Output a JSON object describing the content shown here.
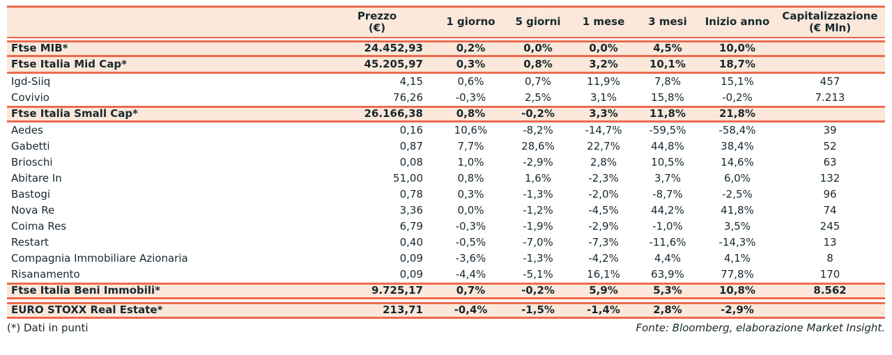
{
  "chart_data": {
    "type": "table",
    "header": {
      "name": "",
      "price": "Prezzo",
      "price_unit": "(€)",
      "day1": "1 giorno",
      "day5": "5 giorni",
      "month1": "1 mese",
      "month3": "3 mesi",
      "ytd": "Inizio anno",
      "cap": "Capitalizzazione",
      "cap_unit": "(€ Mln)"
    },
    "rows": [
      {
        "name": "Ftse MIB*",
        "price": "24.452,93",
        "day1": "0,2%",
        "day5": "0,0%",
        "month1": "0,0%",
        "month3": "4,5%",
        "ytd": "10,0%",
        "cap": "",
        "is_index": true
      },
      {
        "name": "Ftse Italia Mid Cap*",
        "price": "45.205,97",
        "day1": "0,3%",
        "day5": "0,8%",
        "month1": "3,2%",
        "month3": "10,1%",
        "ytd": "18,7%",
        "cap": "",
        "is_index": true
      },
      {
        "name": "Igd-Siiq",
        "price": "4,15",
        "day1": "0,6%",
        "day5": "0,7%",
        "month1": "11,9%",
        "month3": "7,8%",
        "ytd": "15,1%",
        "cap": "457",
        "is_index": false
      },
      {
        "name": "Covivio",
        "price": "76,26",
        "day1": "-0,3%",
        "day5": "2,5%",
        "month1": "3,1%",
        "month3": "15,8%",
        "ytd": "-0,2%",
        "cap": "7.213",
        "is_index": false
      },
      {
        "name": "Ftse Italia Small Cap*",
        "price": "26.166,38",
        "day1": "0,8%",
        "day5": "-0,2%",
        "month1": "3,3%",
        "month3": "11,8%",
        "ytd": "21,8%",
        "cap": "",
        "is_index": true
      },
      {
        "name": "Aedes",
        "price": "0,16",
        "day1": "10,6%",
        "day5": "-8,2%",
        "month1": "-14,7%",
        "month3": "-59,5%",
        "ytd": "-58,4%",
        "cap": "39",
        "is_index": false
      },
      {
        "name": "Gabetti",
        "price": "0,87",
        "day1": "7,7%",
        "day5": "28,6%",
        "month1": "22,7%",
        "month3": "44,8%",
        "ytd": "38,4%",
        "cap": "52",
        "is_index": false
      },
      {
        "name": "Brioschi",
        "price": "0,08",
        "day1": "1,0%",
        "day5": "-2,9%",
        "month1": "2,8%",
        "month3": "10,5%",
        "ytd": "14,6%",
        "cap": "63",
        "is_index": false
      },
      {
        "name": "Abitare In",
        "price": "51,00",
        "day1": "0,8%",
        "day5": "1,6%",
        "month1": "-2,3%",
        "month3": "3,7%",
        "ytd": "6,0%",
        "cap": "132",
        "is_index": false
      },
      {
        "name": "Bastogi",
        "price": "0,78",
        "day1": "0,3%",
        "day5": "-1,3%",
        "month1": "-2,0%",
        "month3": "-8,7%",
        "ytd": "-2,5%",
        "cap": "96",
        "is_index": false
      },
      {
        "name": "Nova Re",
        "price": "3,36",
        "day1": "0,0%",
        "day5": "-1,2%",
        "month1": "-4,5%",
        "month3": "44,2%",
        "ytd": "41,8%",
        "cap": "74",
        "is_index": false
      },
      {
        "name": "Coima Res",
        "price": "6,79",
        "day1": "-0,3%",
        "day5": "-1,9%",
        "month1": "-2,9%",
        "month3": "-1,0%",
        "ytd": "3,5%",
        "cap": "245",
        "is_index": false
      },
      {
        "name": "Restart",
        "price": "0,40",
        "day1": "-0,5%",
        "day5": "-7,0%",
        "month1": "-7,3%",
        "month3": "-11,6%",
        "ytd": "-14,3%",
        "cap": "13",
        "is_index": false
      },
      {
        "name": "Compagnia Immobiliare Azionaria",
        "price": "0,09",
        "day1": "-3,6%",
        "day5": "-1,3%",
        "month1": "-4,2%",
        "month3": "4,4%",
        "ytd": "4,1%",
        "cap": "8",
        "is_index": false
      },
      {
        "name": "Risanamento",
        "price": "0,09",
        "day1": "-4,4%",
        "day5": "-5,1%",
        "month1": "16,1%",
        "month3": "63,9%",
        "ytd": "77,8%",
        "cap": "170",
        "is_index": false
      },
      {
        "name": "Ftse Italia Beni Immobili*",
        "price": "9.725,17",
        "day1": "0,7%",
        "day5": "-0,2%",
        "month1": "5,9%",
        "month3": "5,3%",
        "ytd": "10,8%",
        "cap": "8.562",
        "is_index": true
      },
      {
        "name": "EURO STOXX Real Estate*",
        "price": "213,71",
        "day1": "-0,4%",
        "day5": "-1,5%",
        "month1": "-1,4%",
        "month3": "2,8%",
        "ytd": "-2,9%",
        "cap": "",
        "is_index": true
      }
    ]
  },
  "footer": {
    "note": "(*) Dati in punti",
    "source": "Fonte: Bloomberg, elaborazione Market Insight."
  },
  "colors": {
    "accent": "#EE694D",
    "row_highlight": "#FBE8DA",
    "text": "#17282F",
    "background": "#FFFFFF"
  }
}
